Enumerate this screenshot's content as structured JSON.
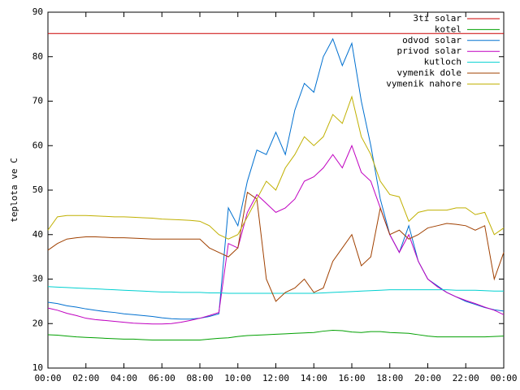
{
  "chart_data": {
    "type": "line",
    "ylabel": "teplota ve C",
    "xlim": [
      0,
      24
    ],
    "ylim": [
      10,
      90
    ],
    "xticks": [
      {
        "value": 0,
        "label": "00:00"
      },
      {
        "value": 2,
        "label": "02:00"
      },
      {
        "value": 4,
        "label": "04:00"
      },
      {
        "value": 6,
        "label": "06:00"
      },
      {
        "value": 8,
        "label": "08:00"
      },
      {
        "value": 10,
        "label": "10:00"
      },
      {
        "value": 12,
        "label": "12:00"
      },
      {
        "value": 14,
        "label": "14:00"
      },
      {
        "value": 16,
        "label": "16:00"
      },
      {
        "value": 18,
        "label": "18:00"
      },
      {
        "value": 20,
        "label": "20:00"
      },
      {
        "value": 22,
        "label": "22:00"
      },
      {
        "value": 24,
        "label": "00:00"
      }
    ],
    "yticks": [
      10,
      20,
      30,
      40,
      50,
      60,
      70,
      80,
      90
    ],
    "legend": "top-right",
    "x": [
      0,
      0.5,
      1,
      1.5,
      2,
      2.5,
      3,
      3.5,
      4,
      4.5,
      5,
      5.5,
      6,
      6.5,
      7,
      7.5,
      8,
      8.5,
      9,
      9.5,
      10,
      10.5,
      11,
      11.5,
      12,
      12.5,
      13,
      13.5,
      14,
      14.5,
      15,
      15.5,
      16,
      16.5,
      17,
      17.5,
      18,
      18.5,
      19,
      19.5,
      20,
      20.5,
      21,
      21.5,
      22,
      22.5,
      23,
      23.5,
      24
    ],
    "series": [
      {
        "name": "3ti solar",
        "color": "#cc0000",
        "values": [
          85.2,
          85.2,
          85.2,
          85.2,
          85.2,
          85.2,
          85.2,
          85.2,
          85.2,
          85.2,
          85.2,
          85.2,
          85.2,
          85.2,
          85.2,
          85.2,
          85.2,
          85.2,
          85.2,
          85.2,
          85.2,
          85.2,
          85.2,
          85.2,
          85.2,
          85.2,
          85.2,
          85.2,
          85.2,
          85.2,
          85.2,
          85.2,
          85.2,
          85.2,
          85.2,
          85.2,
          85.2,
          85.2,
          85.2,
          85.2,
          85.2,
          85.2,
          85.2,
          85.2,
          85.2,
          85.2,
          85.2,
          85.2,
          85.2
        ]
      },
      {
        "name": "kotel",
        "color": "#00a000",
        "values": [
          17.5,
          17.4,
          17.2,
          17,
          16.9,
          16.8,
          16.7,
          16.6,
          16.5,
          16.5,
          16.4,
          16.3,
          16.3,
          16.3,
          16.3,
          16.3,
          16.3,
          16.5,
          16.7,
          16.8,
          17.1,
          17.3,
          17.4,
          17.5,
          17.6,
          17.7,
          17.8,
          17.9,
          18,
          18.3,
          18.5,
          18.4,
          18.1,
          18,
          18.2,
          18.2,
          18,
          17.9,
          17.8,
          17.5,
          17.2,
          17,
          17,
          17,
          17,
          17,
          17,
          17.1,
          17.2
        ]
      },
      {
        "name": "odvod solar",
        "color": "#0070d0",
        "values": [
          24.8,
          24.5,
          24,
          23.7,
          23.3,
          23,
          22.7,
          22.5,
          22.2,
          22,
          21.8,
          21.6,
          21.3,
          21.1,
          21,
          21,
          21.2,
          21.6,
          22.2,
          46,
          42,
          52,
          59,
          58,
          63,
          58,
          68,
          74,
          72,
          80,
          84,
          78,
          83,
          70,
          60,
          48,
          40,
          36,
          42,
          34,
          30,
          28.5,
          27,
          26,
          25,
          24.3,
          23.6,
          23.1,
          22.8
        ]
      },
      {
        "name": "privod solar",
        "color": "#c000c0",
        "values": [
          23.5,
          23,
          22.3,
          21.8,
          21.2,
          20.9,
          20.7,
          20.5,
          20.3,
          20.1,
          20,
          19.9,
          19.9,
          20,
          20.3,
          20.7,
          21.2,
          21.8,
          22.5,
          38,
          37,
          45,
          49,
          47,
          45,
          46,
          48,
          52,
          53,
          55,
          58,
          55,
          60,
          54,
          52,
          46,
          40,
          36,
          40,
          34,
          30,
          28.3,
          27,
          26,
          25.2,
          24.5,
          23.7,
          23,
          22
        ]
      },
      {
        "name": "kutloch",
        "color": "#00d0d0",
        "values": [
          28.3,
          28.2,
          28.1,
          28,
          27.9,
          27.8,
          27.7,
          27.6,
          27.5,
          27.4,
          27.3,
          27.2,
          27.1,
          27.1,
          27,
          27,
          27,
          26.9,
          26.9,
          26.8,
          26.8,
          26.8,
          26.8,
          26.8,
          26.8,
          26.8,
          26.8,
          26.8,
          26.8,
          26.9,
          27,
          27.1,
          27.2,
          27.3,
          27.4,
          27.5,
          27.6,
          27.6,
          27.6,
          27.6,
          27.6,
          27.6,
          27.6,
          27.5,
          27.5,
          27.5,
          27.4,
          27.3,
          27.3
        ]
      },
      {
        "name": "vymenik dole",
        "color": "#a04000",
        "values": [
          36.5,
          38,
          39,
          39.3,
          39.5,
          39.5,
          39.4,
          39.3,
          39.3,
          39.2,
          39.1,
          39,
          39,
          39,
          39,
          39,
          39,
          37,
          36,
          35,
          37,
          49.5,
          48,
          30,
          25,
          27,
          28,
          30,
          27,
          28,
          34,
          37,
          40,
          33,
          35,
          46,
          40,
          41,
          39,
          40,
          41.5,
          42,
          42.5,
          42.3,
          42,
          41,
          42,
          30,
          36
        ]
      },
      {
        "name": "vymenik nahore",
        "color": "#c0b000",
        "values": [
          41,
          44,
          44.3,
          44.3,
          44.3,
          44.2,
          44.1,
          44,
          44,
          43.9,
          43.8,
          43.7,
          43.5,
          43.4,
          43.3,
          43.2,
          43,
          42,
          40,
          39,
          40,
          44,
          48,
          52,
          50,
          55,
          58,
          62,
          60,
          62,
          67,
          65,
          71,
          62,
          58,
          52,
          49,
          48.5,
          43,
          45,
          45.5,
          45.5,
          45.5,
          46,
          46,
          44.5,
          45,
          40,
          41.5
        ]
      }
    ]
  }
}
